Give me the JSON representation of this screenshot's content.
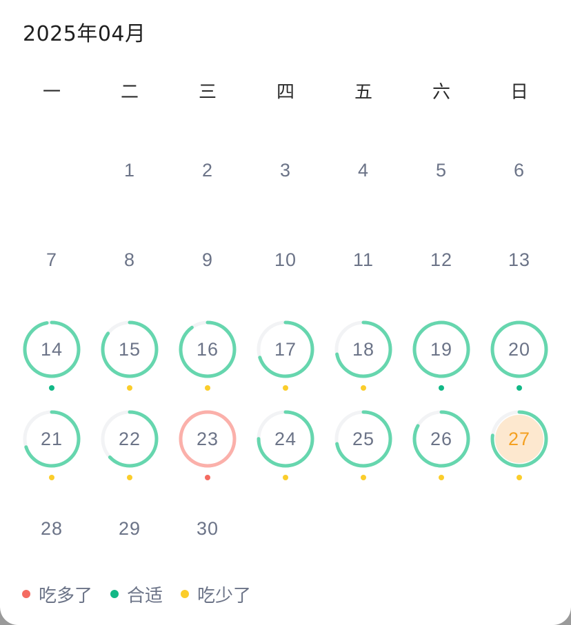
{
  "header": {
    "title": "2025年04月"
  },
  "weekdays": [
    "一",
    "二",
    "三",
    "四",
    "五",
    "六",
    "日"
  ],
  "colors": {
    "track": "#f2f3f5",
    "good": "#66d6ae",
    "over": "#fbb0aa",
    "dot_over": "#f46b61",
    "dot_good": "#12b886",
    "dot_under": "#fbcd2b",
    "today_text": "#f4a021",
    "today_bg": "#fde8cf"
  },
  "month": {
    "first_weekday_index": 1,
    "days": [
      {
        "day": "1"
      },
      {
        "day": "2"
      },
      {
        "day": "3"
      },
      {
        "day": "4"
      },
      {
        "day": "5"
      },
      {
        "day": "6"
      },
      {
        "day": "7"
      },
      {
        "day": "8"
      },
      {
        "day": "9"
      },
      {
        "day": "10"
      },
      {
        "day": "11"
      },
      {
        "day": "12"
      },
      {
        "day": "13"
      },
      {
        "day": "14",
        "progress": 0.97,
        "status": "good"
      },
      {
        "day": "15",
        "progress": 0.85,
        "status": "under"
      },
      {
        "day": "16",
        "progress": 0.9,
        "status": "under"
      },
      {
        "day": "17",
        "progress": 0.7,
        "status": "under"
      },
      {
        "day": "18",
        "progress": 0.72,
        "status": "under"
      },
      {
        "day": "19",
        "progress": 1.0,
        "status": "good"
      },
      {
        "day": "20",
        "progress": 1.0,
        "status": "good"
      },
      {
        "day": "21",
        "progress": 0.7,
        "status": "under"
      },
      {
        "day": "22",
        "progress": 0.63,
        "status": "under"
      },
      {
        "day": "23",
        "progress": 1.0,
        "status": "over"
      },
      {
        "day": "24",
        "progress": 0.75,
        "status": "under"
      },
      {
        "day": "25",
        "progress": 0.72,
        "status": "under"
      },
      {
        "day": "26",
        "progress": 0.83,
        "status": "under"
      },
      {
        "day": "27",
        "progress": 0.77,
        "status": "under",
        "today": true
      },
      {
        "day": "28"
      },
      {
        "day": "29"
      },
      {
        "day": "30"
      }
    ]
  },
  "legend": [
    {
      "label": "吃多了",
      "status": "over"
    },
    {
      "label": "合适",
      "status": "good"
    },
    {
      "label": "吃少了",
      "status": "under"
    }
  ]
}
